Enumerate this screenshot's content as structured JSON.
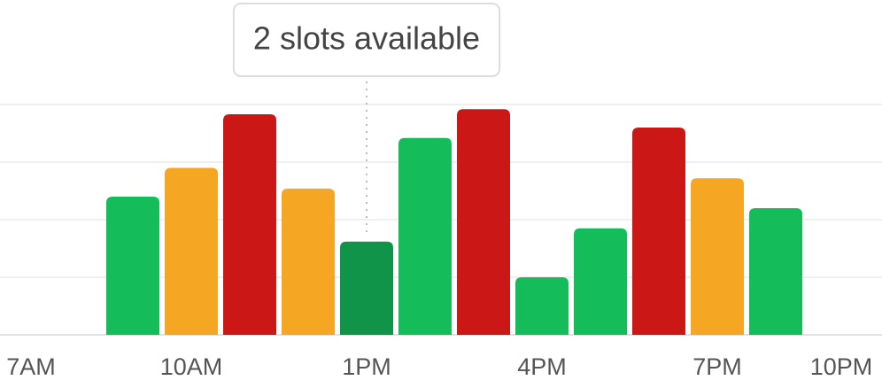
{
  "chart_data": {
    "type": "bar",
    "categories": [
      "7AM",
      null,
      null,
      "10AM",
      null,
      null,
      "1PM",
      null,
      null,
      "4PM",
      null,
      null,
      "7PM",
      null,
      null,
      "10PM"
    ],
    "values": [
      null,
      null,
      2.4,
      2.9,
      3.83,
      2.54,
      1.62,
      3.42,
      3.92,
      1.0,
      1.85,
      3.6,
      2.72,
      2.2,
      null,
      null
    ],
    "colors": [
      null,
      null,
      "#14bc5a",
      "#f5a623",
      "#cc1717",
      "#f5a623",
      "#10944a",
      "#14bc5a",
      "#cc1717",
      "#14bc5a",
      "#14bc5a",
      "#cc1717",
      "#f5a623",
      "#14bc5a",
      null,
      null
    ],
    "ylim": [
      0,
      4
    ],
    "yticks": [
      0,
      1,
      2,
      3,
      4
    ],
    "grid": true,
    "annotation": {
      "text": "2 slots available",
      "index": 6
    }
  }
}
